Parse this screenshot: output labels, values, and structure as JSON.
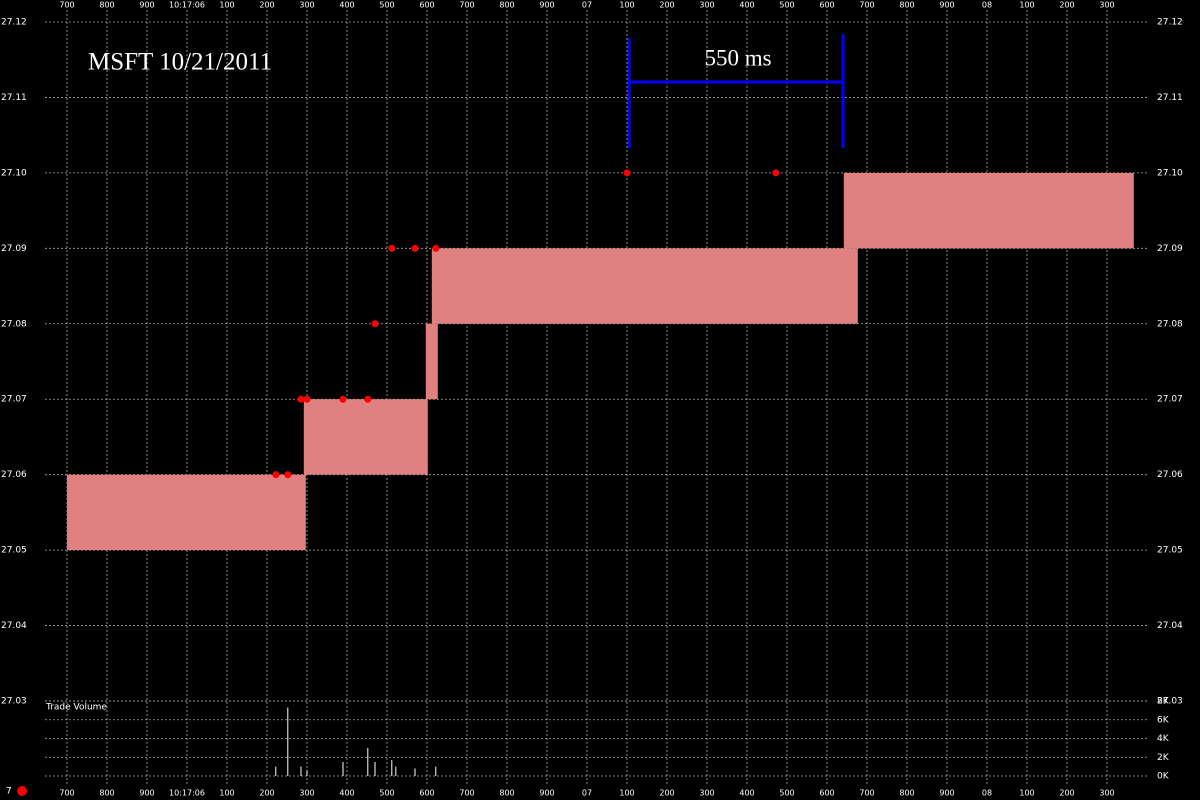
{
  "chart_data": {
    "type": "quote-bands",
    "title": "MSFT 10/21/2011",
    "annotation": "550 ms",
    "xlim": [
      5600,
      8400
    ],
    "xticks": [
      {
        "value": 5700,
        "label": "700"
      },
      {
        "value": 5800,
        "label": "800"
      },
      {
        "value": 5900,
        "label": "900"
      },
      {
        "value": 6000,
        "label": "10:17:06"
      },
      {
        "value": 6100,
        "label": "100"
      },
      {
        "value": 6200,
        "label": "200"
      },
      {
        "value": 6300,
        "label": "300"
      },
      {
        "value": 6400,
        "label": "400"
      },
      {
        "value": 6500,
        "label": "500"
      },
      {
        "value": 6600,
        "label": "600"
      },
      {
        "value": 6700,
        "label": "700"
      },
      {
        "value": 6800,
        "label": "800"
      },
      {
        "value": 6900,
        "label": "900"
      },
      {
        "value": 7000,
        "label": "07"
      },
      {
        "value": 7100,
        "label": "100"
      },
      {
        "value": 7200,
        "label": "200"
      },
      {
        "value": 7300,
        "label": "300"
      },
      {
        "value": 7400,
        "label": "400"
      },
      {
        "value": 7500,
        "label": "500"
      },
      {
        "value": 7600,
        "label": "600"
      },
      {
        "value": 7700,
        "label": "700"
      },
      {
        "value": 7800,
        "label": "800"
      },
      {
        "value": 7900,
        "label": "900"
      },
      {
        "value": 8000,
        "label": "08"
      },
      {
        "value": 8100,
        "label": "100"
      },
      {
        "value": 8200,
        "label": "200"
      },
      {
        "value": 8300,
        "label": "300"
      }
    ],
    "ylim": [
      27.03,
      27.12
    ],
    "yticks": [
      27.03,
      27.04,
      27.05,
      27.06,
      27.07,
      27.08,
      27.09,
      {
        "value": 27.1,
        "label": "27.10"
      },
      27.11,
      27.12
    ],
    "grid": true,
    "quote_bands": {
      "color": "#e08080",
      "x_start": [
        5700,
        6292,
        6597,
        6612,
        7642
      ],
      "x_end": [
        6297,
        6602,
        6627,
        7677,
        8367
      ],
      "low": [
        27.05,
        27.06,
        27.07,
        27.08,
        27.09
      ],
      "high": [
        27.06,
        27.07,
        27.08,
        27.09,
        27.1
      ]
    },
    "trades": {
      "color": "#ff0000",
      "x": [
        6222,
        6252,
        6285,
        6300,
        6390,
        6452,
        6470,
        6512,
        6570,
        6622,
        7100,
        7472
      ],
      "values": [
        27.06,
        27.06,
        27.07,
        27.07,
        27.07,
        27.07,
        27.08,
        27.09,
        27.09,
        27.09,
        27.1,
        27.1
      ]
    },
    "volume": {
      "title": "Trade Volume",
      "color": "#ffffff",
      "ylim": [
        0,
        8000
      ],
      "yticks": [
        {
          "value": 0,
          "label": "0K"
        },
        {
          "value": 2000,
          "label": "2K"
        },
        {
          "value": 4000,
          "label": "4K"
        },
        {
          "value": 6000,
          "label": "6K"
        },
        {
          "value": 8000,
          "label": "8K"
        }
      ],
      "x": [
        6222,
        6252,
        6285,
        6300,
        6390,
        6452,
        6470,
        6512,
        6522,
        6570,
        6622
      ],
      "values": [
        1000,
        7300,
        1000,
        600,
        1500,
        3000,
        1500,
        1700,
        1000,
        800,
        1000
      ]
    },
    "legend_label": "7"
  }
}
